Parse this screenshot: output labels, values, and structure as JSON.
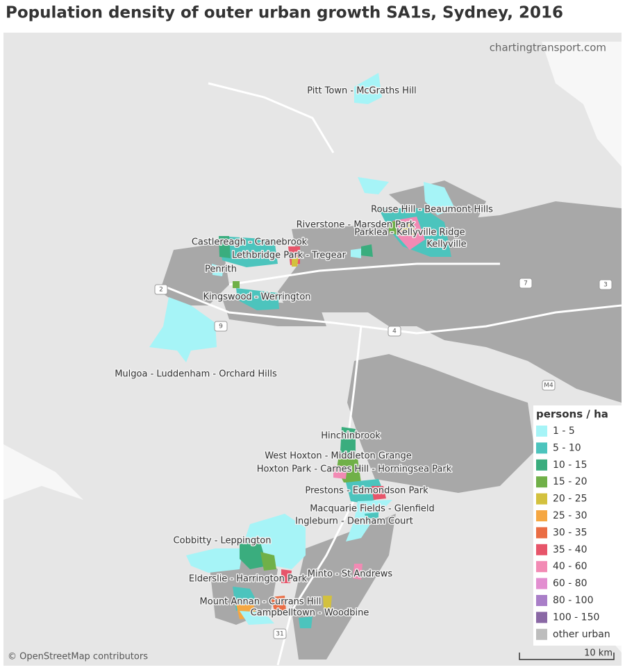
{
  "title": "Population density of outer urban growth SA1s, Sydney, 2016",
  "watermark": "chartingtransport.com",
  "places": [
    "Pitt Town - McGraths Hill",
    "Rouse Hill - Beaumont Hills",
    "Riverstone - Marsden Park",
    "Parklea - Kellyville Ridge",
    "Castlereagh - Cranebrook",
    "Kellyville",
    "Lethbridge Park - Tregear",
    "Penrith",
    "Kingswood - Werrington",
    "Mulgoa - Luddenham - Orchard Hills",
    "Hinchinbrook",
    "West Hoxton - Middleton Grange",
    "Hoxton Park - Carnes Hill - Horningsea Park",
    "Prestons - Edmondson Park",
    "Macquarie Fields - Glenfield",
    "Ingleburn - Denham Court",
    "Cobbitty - Leppington",
    "Minto - St Andrews",
    "Elderslie - Harrington Park",
    "Mount Annan - Currans Hill",
    "Campbelltown - Woodbine"
  ],
  "road_labels": [
    "2",
    "9",
    "4",
    "7",
    "3",
    "M4",
    "31"
  ],
  "legend": {
    "title": "persons / ha",
    "items": [
      {
        "label": "1 - 5",
        "color": "#a6f4f7"
      },
      {
        "label": "5 - 10",
        "color": "#4cc4bd"
      },
      {
        "label": "10 - 15",
        "color": "#3aad7e"
      },
      {
        "label": "15 - 20",
        "color": "#70b048"
      },
      {
        "label": "20 - 25",
        "color": "#d3c13e"
      },
      {
        "label": "25 - 30",
        "color": "#f5a742"
      },
      {
        "label": "30 - 35",
        "color": "#ea6d44"
      },
      {
        "label": "35 - 40",
        "color": "#e7556a"
      },
      {
        "label": "40 - 60",
        "color": "#f28ab4"
      },
      {
        "label": "60 - 80",
        "color": "#e28ed0"
      },
      {
        "label": "80 - 100",
        "color": "#a97ec8"
      },
      {
        "label": "100 - 150",
        "color": "#8a68a5"
      },
      {
        "label": "other urban",
        "color": "#bdbdbd"
      }
    ]
  },
  "attribution": "© OpenStreetMap contributors",
  "scale_label": "10 km"
}
